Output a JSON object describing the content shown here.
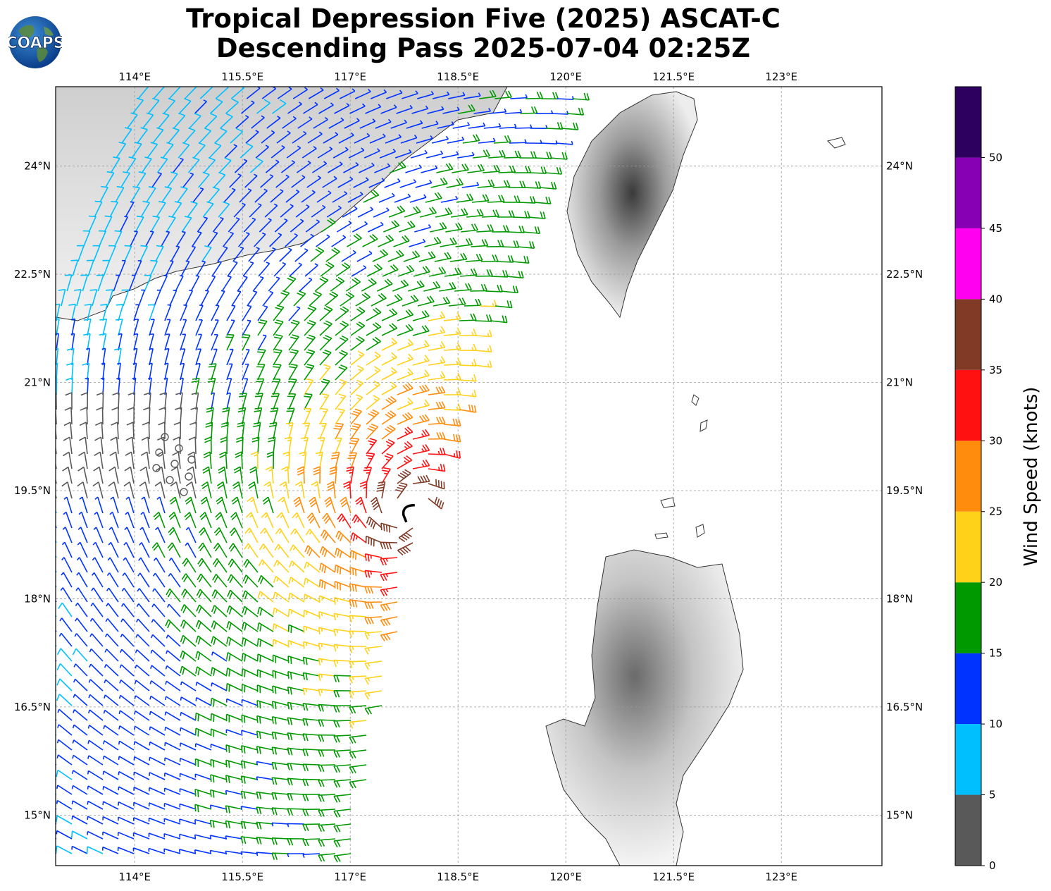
{
  "title": {
    "line1": "Tropical Depression Five (2025) ASCAT-C",
    "line2": "Descending Pass 2025-07-04 02:25Z"
  },
  "logo": {
    "text": "COAPS",
    "icon": "globe-icon"
  },
  "map": {
    "lon_range": [
      112.9,
      124.4
    ],
    "lat_range": [
      14.3,
      25.1
    ],
    "lon_ticks": [
      {
        "value": 114,
        "label": "114°E"
      },
      {
        "value": 115.5,
        "label": "115.5°E"
      },
      {
        "value": 117,
        "label": "117°E"
      },
      {
        "value": 118.5,
        "label": "118.5°E"
      },
      {
        "value": 120,
        "label": "120°E"
      },
      {
        "value": 121.5,
        "label": "121.5°E"
      },
      {
        "value": 123,
        "label": "123°E"
      }
    ],
    "lat_ticks": [
      {
        "value": 24,
        "label": "24°N"
      },
      {
        "value": 22.5,
        "label": "22.5°N"
      },
      {
        "value": 21,
        "label": "21°N"
      },
      {
        "value": 19.5,
        "label": "19.5°N"
      },
      {
        "value": 18,
        "label": "18°N"
      },
      {
        "value": 16.5,
        "label": "16.5°N"
      },
      {
        "value": 15,
        "label": "15°N"
      }
    ],
    "grid": true,
    "storm_center": {
      "lon": 117.8,
      "lat": 19.2
    }
  },
  "colorbar": {
    "title": "Wind Speed (knots)",
    "bins": [
      {
        "min": 0,
        "max": 5,
        "color": "#595959"
      },
      {
        "min": 5,
        "max": 10,
        "color": "#00bfff"
      },
      {
        "min": 10,
        "max": 15,
        "color": "#0033ff"
      },
      {
        "min": 15,
        "max": 20,
        "color": "#009900"
      },
      {
        "min": 20,
        "max": 25,
        "color": "#ffd21a"
      },
      {
        "min": 25,
        "max": 30,
        "color": "#ff8c0d"
      },
      {
        "min": 30,
        "max": 35,
        "color": "#ff1111"
      },
      {
        "min": 35,
        "max": 40,
        "color": "#803a26"
      },
      {
        "min": 40,
        "max": 45,
        "color": "#ff00f0"
      },
      {
        "min": 45,
        "max": 50,
        "color": "#8800b3"
      },
      {
        "min": 50,
        "max": 55,
        "color": "#2d0060"
      }
    ],
    "labels": [
      "0",
      "5",
      "10",
      "15",
      "20",
      "25",
      "30",
      "35",
      "40",
      "45",
      "50"
    ]
  }
}
